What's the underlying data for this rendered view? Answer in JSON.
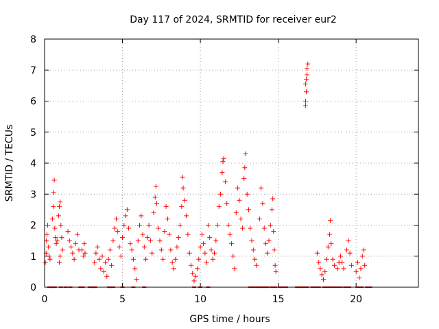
{
  "chart_data": {
    "type": "scatter",
    "title": "Day 117 of 2024, SRMTID for receiver eur2",
    "xlabel": "GPS time / hours",
    "ylabel": "SRMTID / TECUs",
    "xlim": [
      0,
      24
    ],
    "ylim": [
      0,
      8
    ],
    "xticks": [
      0,
      5,
      10,
      15,
      20
    ],
    "yticks": [
      0,
      1,
      2,
      3,
      4,
      5,
      6,
      7,
      8
    ],
    "x_tick_labels": [
      "0",
      "5",
      "10",
      "15",
      "20"
    ],
    "y_tick_labels": [
      "0",
      "1",
      "2",
      "3",
      "4",
      "5",
      "6",
      "7",
      "8"
    ],
    "grid": true,
    "marker": "+",
    "color": "#ff0000",
    "series": [
      {
        "name": "SRMTID",
        "values": [
          [
            0.05,
            0.8
          ],
          [
            0.1,
            1.1
          ],
          [
            0.12,
            1.5
          ],
          [
            0.15,
            1.7
          ],
          [
            0.2,
            2.0
          ],
          [
            0.25,
            1.3
          ],
          [
            0.3,
            1.0
          ],
          [
            0.35,
            0.9
          ],
          [
            0.5,
            2.2
          ],
          [
            0.55,
            2.6
          ],
          [
            0.58,
            3.05
          ],
          [
            0.62,
            3.45
          ],
          [
            0.65,
            1.9
          ],
          [
            0.7,
            1.6
          ],
          [
            0.75,
            1.4
          ],
          [
            0.8,
            1.5
          ],
          [
            0.9,
            2.3
          ],
          [
            0.95,
            2.6
          ],
          [
            1.0,
            2.75
          ],
          [
            1.05,
            2.0
          ],
          [
            1.1,
            1.6
          ],
          [
            1.15,
            1.2
          ],
          [
            1.0,
            1.0
          ],
          [
            0.95,
            0.8
          ],
          [
            1.5,
            1.8
          ],
          [
            1.6,
            1.5
          ],
          [
            1.7,
            1.3
          ],
          [
            1.8,
            1.1
          ],
          [
            1.9,
            0.9
          ],
          [
            2.0,
            1.4
          ],
          [
            2.1,
            1.7
          ],
          [
            2.2,
            1.2
          ],
          [
            2.4,
            1.2
          ],
          [
            2.5,
            1.0
          ],
          [
            2.55,
            1.4
          ],
          [
            2.6,
            1.1
          ],
          [
            3.2,
            0.8
          ],
          [
            3.3,
            1.1
          ],
          [
            3.4,
            1.3
          ],
          [
            3.5,
            0.9
          ],
          [
            3.6,
            0.6
          ],
          [
            3.7,
            1.0
          ],
          [
            3.8,
            0.5
          ],
          [
            3.9,
            0.8
          ],
          [
            4.0,
            0.35
          ],
          [
            4.1,
            0.9
          ],
          [
            4.2,
            1.2
          ],
          [
            4.3,
            0.7
          ],
          [
            4.4,
            1.5
          ],
          [
            4.5,
            1.9
          ],
          [
            4.6,
            2.2
          ],
          [
            4.7,
            1.8
          ],
          [
            4.8,
            1.3
          ],
          [
            4.9,
            1.0
          ],
          [
            5.0,
            1.6
          ],
          [
            5.1,
            2.0
          ],
          [
            5.2,
            2.3
          ],
          [
            5.3,
            2.5
          ],
          [
            5.4,
            1.9
          ],
          [
            5.5,
            1.4
          ],
          [
            5.6,
            1.2
          ],
          [
            5.7,
            0.9
          ],
          [
            5.8,
            0.6
          ],
          [
            5.9,
            0.25
          ],
          [
            6.0,
            1.5
          ],
          [
            6.1,
            2.0
          ],
          [
            6.2,
            2.3
          ],
          [
            6.3,
            1.7
          ],
          [
            6.4,
            1.3
          ],
          [
            6.5,
            0.9
          ],
          [
            6.6,
            1.6
          ],
          [
            6.7,
            2.0
          ],
          [
            6.8,
            1.5
          ],
          [
            6.9,
            1.1
          ],
          [
            7.0,
            2.4
          ],
          [
            7.1,
            2.9
          ],
          [
            7.15,
            3.25
          ],
          [
            7.2,
            2.7
          ],
          [
            7.3,
            1.9
          ],
          [
            7.4,
            1.5
          ],
          [
            7.5,
            1.2
          ],
          [
            7.6,
            0.9
          ],
          [
            7.7,
            1.8
          ],
          [
            7.8,
            2.6
          ],
          [
            7.9,
            2.2
          ],
          [
            8.0,
            1.7
          ],
          [
            8.1,
            1.2
          ],
          [
            8.2,
            0.8
          ],
          [
            8.3,
            0.6
          ],
          [
            8.4,
            0.9
          ],
          [
            8.5,
            1.3
          ],
          [
            8.6,
            1.6
          ],
          [
            8.7,
            2.0
          ],
          [
            8.8,
            2.6
          ],
          [
            8.9,
            3.2
          ],
          [
            8.85,
            3.55
          ],
          [
            9.0,
            2.8
          ],
          [
            9.1,
            2.3
          ],
          [
            9.2,
            1.7
          ],
          [
            9.3,
            1.1
          ],
          [
            9.4,
            0.7
          ],
          [
            9.5,
            0.45
          ],
          [
            9.6,
            0.2
          ],
          [
            9.7,
            0.35
          ],
          [
            9.8,
            0.6
          ],
          [
            9.9,
            0.9
          ],
          [
            10.0,
            1.3
          ],
          [
            10.1,
            1.7
          ],
          [
            10.2,
            1.4
          ],
          [
            10.3,
            1.1
          ],
          [
            10.4,
            0.8
          ],
          [
            10.5,
            2.0
          ],
          [
            10.6,
            1.6
          ],
          [
            10.7,
            1.2
          ],
          [
            10.8,
            0.9
          ],
          [
            10.9,
            1.1
          ],
          [
            11.0,
            1.5
          ],
          [
            11.1,
            2.0
          ],
          [
            11.2,
            2.6
          ],
          [
            11.3,
            3.0
          ],
          [
            11.4,
            3.7
          ],
          [
            11.45,
            4.05
          ],
          [
            11.5,
            4.15
          ],
          [
            11.6,
            3.4
          ],
          [
            11.7,
            2.7
          ],
          [
            11.8,
            2.0
          ],
          [
            11.9,
            1.7
          ],
          [
            12.0,
            1.4
          ],
          [
            12.1,
            1.0
          ],
          [
            12.2,
            0.6
          ],
          [
            12.3,
            2.4
          ],
          [
            12.4,
            3.2
          ],
          [
            12.5,
            2.8
          ],
          [
            12.6,
            2.2
          ],
          [
            12.7,
            1.9
          ],
          [
            12.8,
            3.5
          ],
          [
            12.85,
            3.85
          ],
          [
            12.9,
            4.3
          ],
          [
            13.0,
            3.0
          ],
          [
            13.1,
            2.5
          ],
          [
            13.2,
            1.9
          ],
          [
            13.3,
            1.5
          ],
          [
            13.4,
            1.2
          ],
          [
            13.5,
            0.9
          ],
          [
            13.6,
            0.7
          ],
          [
            13.8,
            2.2
          ],
          [
            13.9,
            3.2
          ],
          [
            14.0,
            2.7
          ],
          [
            14.1,
            1.9
          ],
          [
            14.2,
            1.4
          ],
          [
            14.3,
            1.1
          ],
          [
            14.4,
            1.5
          ],
          [
            14.5,
            2.0
          ],
          [
            14.6,
            2.5
          ],
          [
            14.65,
            2.85
          ],
          [
            14.7,
            1.8
          ],
          [
            14.75,
            1.2
          ],
          [
            14.8,
            0.7
          ],
          [
            14.85,
            0.5
          ],
          [
            16.75,
            6.55
          ],
          [
            16.75,
            6.0
          ],
          [
            16.75,
            5.85
          ],
          [
            16.8,
            6.3
          ],
          [
            16.8,
            6.7
          ],
          [
            16.85,
            7.05
          ],
          [
            16.9,
            7.2
          ],
          [
            16.85,
            6.85
          ],
          [
            17.5,
            1.1
          ],
          [
            17.6,
            0.8
          ],
          [
            17.7,
            0.6
          ],
          [
            17.8,
            0.4
          ],
          [
            17.9,
            0.25
          ],
          [
            18.0,
            0.5
          ],
          [
            18.1,
            0.9
          ],
          [
            18.2,
            1.3
          ],
          [
            18.3,
            1.7
          ],
          [
            18.35,
            2.15
          ],
          [
            18.4,
            1.4
          ],
          [
            18.5,
            0.9
          ],
          [
            18.6,
            0.7
          ],
          [
            18.8,
            0.6
          ],
          [
            18.9,
            0.8
          ],
          [
            19.0,
            1.0
          ],
          [
            19.1,
            0.8
          ],
          [
            19.2,
            0.6
          ],
          [
            19.4,
            1.2
          ],
          [
            19.5,
            1.5
          ],
          [
            19.6,
            1.1
          ],
          [
            19.7,
            0.7
          ],
          [
            20.0,
            0.5
          ],
          [
            20.1,
            0.8
          ],
          [
            20.2,
            0.3
          ],
          [
            20.3,
            0.6
          ],
          [
            20.4,
            1.0
          ],
          [
            20.5,
            1.2
          ],
          [
            20.55,
            0.7
          ]
        ]
      }
    ],
    "zero_markers_x": [
      0.3,
      0.45,
      0.55,
      0.65,
      1.05,
      1.35,
      1.65,
      2.3,
      2.45,
      2.9,
      3.05,
      3.15,
      3.25,
      4.15,
      4.25,
      4.4,
      5.0,
      5.7,
      6.4,
      9.6,
      10.0,
      10.5,
      13.2,
      13.4,
      13.65,
      13.8,
      14.0,
      14.15,
      14.3,
      14.6,
      14.8,
      15.1,
      15.25,
      15.5,
      16.2,
      16.35,
      16.55,
      16.7,
      16.85,
      17.2,
      17.35,
      17.6,
      17.95,
      18.15,
      18.35,
      18.6,
      18.8,
      19.0,
      19.3,
      19.55,
      20.1,
      20.35,
      20.7,
      20.9
    ]
  }
}
